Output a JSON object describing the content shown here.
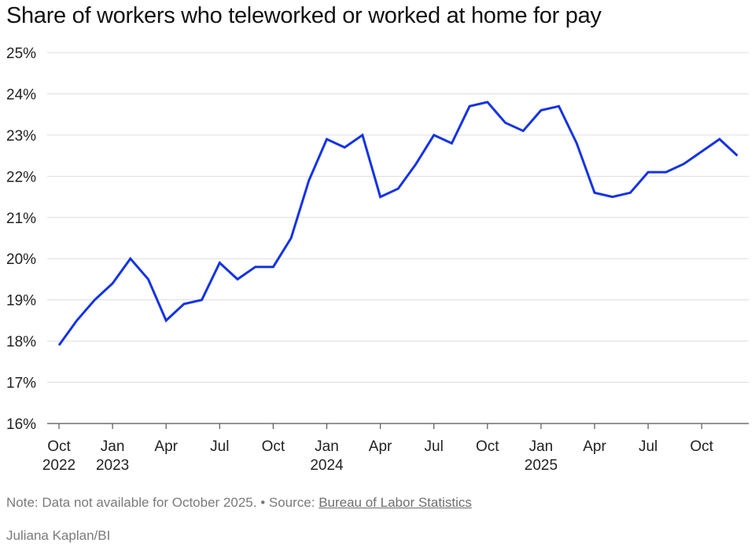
{
  "chart_data": {
    "type": "line",
    "title": "Share of workers who teleworked or worked at home for pay",
    "xlabel": "",
    "ylabel": "",
    "ylim": [
      16,
      25
    ],
    "y_ticks": [
      16,
      17,
      18,
      19,
      20,
      21,
      22,
      23,
      24,
      25
    ],
    "y_tick_labels": [
      "16%",
      "17%",
      "18%",
      "19%",
      "20%",
      "21%",
      "22%",
      "23%",
      "24%",
      "25%"
    ],
    "grid": true,
    "line_color": "#1433e6",
    "x_ticks": [
      {
        "date": "2022-10",
        "label": "Oct",
        "year": "2022"
      },
      {
        "date": "2023-01",
        "label": "Jan",
        "year": "2023"
      },
      {
        "date": "2023-04",
        "label": "Apr",
        "year": ""
      },
      {
        "date": "2023-07",
        "label": "Jul",
        "year": ""
      },
      {
        "date": "2023-10",
        "label": "Oct",
        "year": ""
      },
      {
        "date": "2024-01",
        "label": "Jan",
        "year": "2024"
      },
      {
        "date": "2024-04",
        "label": "Apr",
        "year": ""
      },
      {
        "date": "2024-07",
        "label": "Jul",
        "year": ""
      },
      {
        "date": "2024-10",
        "label": "Oct",
        "year": ""
      },
      {
        "date": "2025-01",
        "label": "Jan",
        "year": "2025"
      },
      {
        "date": "2025-04",
        "label": "Apr",
        "year": ""
      },
      {
        "date": "2025-07",
        "label": "Jul",
        "year": ""
      },
      {
        "date": "2025-10",
        "label": "Oct",
        "year": ""
      }
    ],
    "series": [
      {
        "points": [
          {
            "x": "2022-10",
            "y": 17.9
          },
          {
            "x": "2022-11",
            "y": 18.5
          },
          {
            "x": "2022-12",
            "y": 19.0
          },
          {
            "x": "2023-01",
            "y": 19.4
          },
          {
            "x": "2023-02",
            "y": 20.0
          },
          {
            "x": "2023-03",
            "y": 19.5
          },
          {
            "x": "2023-04",
            "y": 18.5
          },
          {
            "x": "2023-05",
            "y": 18.9
          },
          {
            "x": "2023-06",
            "y": 19.0
          },
          {
            "x": "2023-07",
            "y": 19.9
          },
          {
            "x": "2023-08",
            "y": 19.5
          },
          {
            "x": "2023-09",
            "y": 19.8
          },
          {
            "x": "2023-10",
            "y": 19.8
          },
          {
            "x": "2023-11",
            "y": 20.5
          },
          {
            "x": "2023-12",
            "y": 21.9
          },
          {
            "x": "2024-01",
            "y": 22.9
          },
          {
            "x": "2024-02",
            "y": 22.7
          },
          {
            "x": "2024-03",
            "y": 23.0
          },
          {
            "x": "2024-04",
            "y": 21.5
          },
          {
            "x": "2024-05",
            "y": 21.7
          },
          {
            "x": "2024-06",
            "y": 22.3
          },
          {
            "x": "2024-07",
            "y": 23.0
          },
          {
            "x": "2024-08",
            "y": 22.8
          },
          {
            "x": "2024-09",
            "y": 23.7
          },
          {
            "x": "2024-10",
            "y": 23.8
          },
          {
            "x": "2024-11",
            "y": 23.3
          },
          {
            "x": "2024-12",
            "y": 23.1
          },
          {
            "x": "2025-01",
            "y": 23.6
          },
          {
            "x": "2025-02",
            "y": 23.7
          },
          {
            "x": "2025-03",
            "y": 22.8
          },
          {
            "x": "2025-04",
            "y": 21.6
          },
          {
            "x": "2025-05",
            "y": 21.5
          },
          {
            "x": "2025-06",
            "y": 21.6
          },
          {
            "x": "2025-07",
            "y": 22.1
          },
          {
            "x": "2025-08",
            "y": 22.1
          },
          {
            "x": "2025-09",
            "y": 22.3
          },
          {
            "x": "2025-11",
            "y": 22.9
          },
          {
            "x": "2025-12",
            "y": 22.5
          }
        ]
      }
    ]
  },
  "footer": {
    "note": "Note: Data not available for October 2025.",
    "separator": " • ",
    "source_prefix": "Source: ",
    "source_link": "Bureau of Labor Statistics",
    "credit": "Juliana Kaplan/BI"
  }
}
